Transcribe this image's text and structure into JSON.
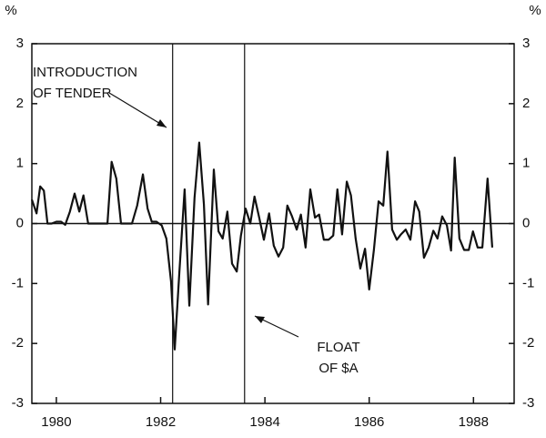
{
  "chart_data": {
    "type": "line",
    "y_label": "%",
    "y2_label": "%",
    "x": [
      1979.53,
      1979.62,
      1979.69,
      1979.76,
      1979.83,
      1979.91,
      1980.0,
      1980.09,
      1980.17,
      1980.26,
      1980.35,
      1980.44,
      1980.52,
      1980.61,
      1980.75,
      1980.98,
      1981.06,
      1981.15,
      1981.24,
      1981.45,
      1981.55,
      1981.66,
      1981.75,
      1981.83,
      1981.92,
      1982.02,
      1982.11,
      1982.2,
      1982.27,
      1982.36,
      1982.46,
      1982.55,
      1982.65,
      1982.74,
      1982.83,
      1982.91,
      1983.02,
      1983.11,
      1983.19,
      1983.28,
      1983.37,
      1983.46,
      1983.54,
      1983.63,
      1983.72,
      1983.8,
      1983.89,
      1983.98,
      1984.08,
      1984.17,
      1984.26,
      1984.35,
      1984.43,
      1984.52,
      1984.61,
      1984.69,
      1984.78,
      1984.87,
      1984.96,
      1985.04,
      1985.13,
      1985.22,
      1985.31,
      1985.39,
      1985.48,
      1985.57,
      1985.65,
      1985.74,
      1985.83,
      1985.92,
      1986.0,
      1986.09,
      1986.18,
      1986.27,
      1986.35,
      1986.44,
      1986.53,
      1986.61,
      1986.7,
      1986.79,
      1986.88,
      1986.96,
      1987.05,
      1987.14,
      1987.23,
      1987.31,
      1987.4,
      1987.49,
      1987.57,
      1987.64,
      1987.73,
      1987.82,
      1987.91,
      1987.99,
      1988.08,
      1988.17,
      1988.27,
      1988.36
    ],
    "series": [
      {
        "color": "#111111",
        "values": [
          0.4,
          0.17,
          0.62,
          0.55,
          0,
          0,
          0.03,
          0.03,
          -0.02,
          0.2,
          0.5,
          0.2,
          0.47,
          0,
          0,
          0,
          1.03,
          0.75,
          0,
          0,
          0.3,
          0.82,
          0.25,
          0.03,
          0.03,
          -0.03,
          -0.25,
          -0.97,
          -2.1,
          -0.8,
          0.57,
          -1.37,
          0.43,
          1.35,
          0.32,
          -1.35,
          0.9,
          -0.13,
          -0.25,
          0.2,
          -0.67,
          -0.8,
          -0.2,
          0.25,
          0,
          0.45,
          0.1,
          -0.27,
          0.17,
          -0.37,
          -0.55,
          -0.4,
          0.3,
          0.12,
          -0.1,
          0.15,
          -0.4,
          0.57,
          0.1,
          0.15,
          -0.27,
          -0.27,
          -0.2,
          0.57,
          -0.18,
          0.7,
          0.47,
          -0.25,
          -0.75,
          -0.42,
          -1.1,
          -0.44,
          0.37,
          0.3,
          1.2,
          -0.1,
          -0.27,
          -0.18,
          -0.1,
          -0.27,
          0.37,
          0.2,
          -0.57,
          -0.4,
          -0.12,
          -0.25,
          0.12,
          -0.03,
          -0.45,
          1.1,
          -0.25,
          -0.44,
          -0.44,
          -0.13,
          -0.4,
          -0.4,
          0.75,
          -0.4
        ]
      }
    ],
    "xlim": [
      1979.53,
      1988.78
    ],
    "xticks": [
      1980,
      1982,
      1984,
      1986,
      1988
    ],
    "ylim": [
      -3,
      3
    ],
    "yticks": [
      -3,
      -2,
      -1,
      0,
      1,
      2,
      3
    ],
    "y2lim": [
      -3,
      3
    ],
    "y2ticks": [
      -3,
      -2,
      -1,
      0,
      1,
      2,
      3
    ],
    "vlines": [
      1982.23,
      1983.61
    ],
    "annotations": [
      {
        "lines": [
          "INTRODUCTION",
          "OF TENDER"
        ]
      },
      {
        "lines": [
          "FLOAT",
          "OF $A"
        ]
      }
    ]
  }
}
